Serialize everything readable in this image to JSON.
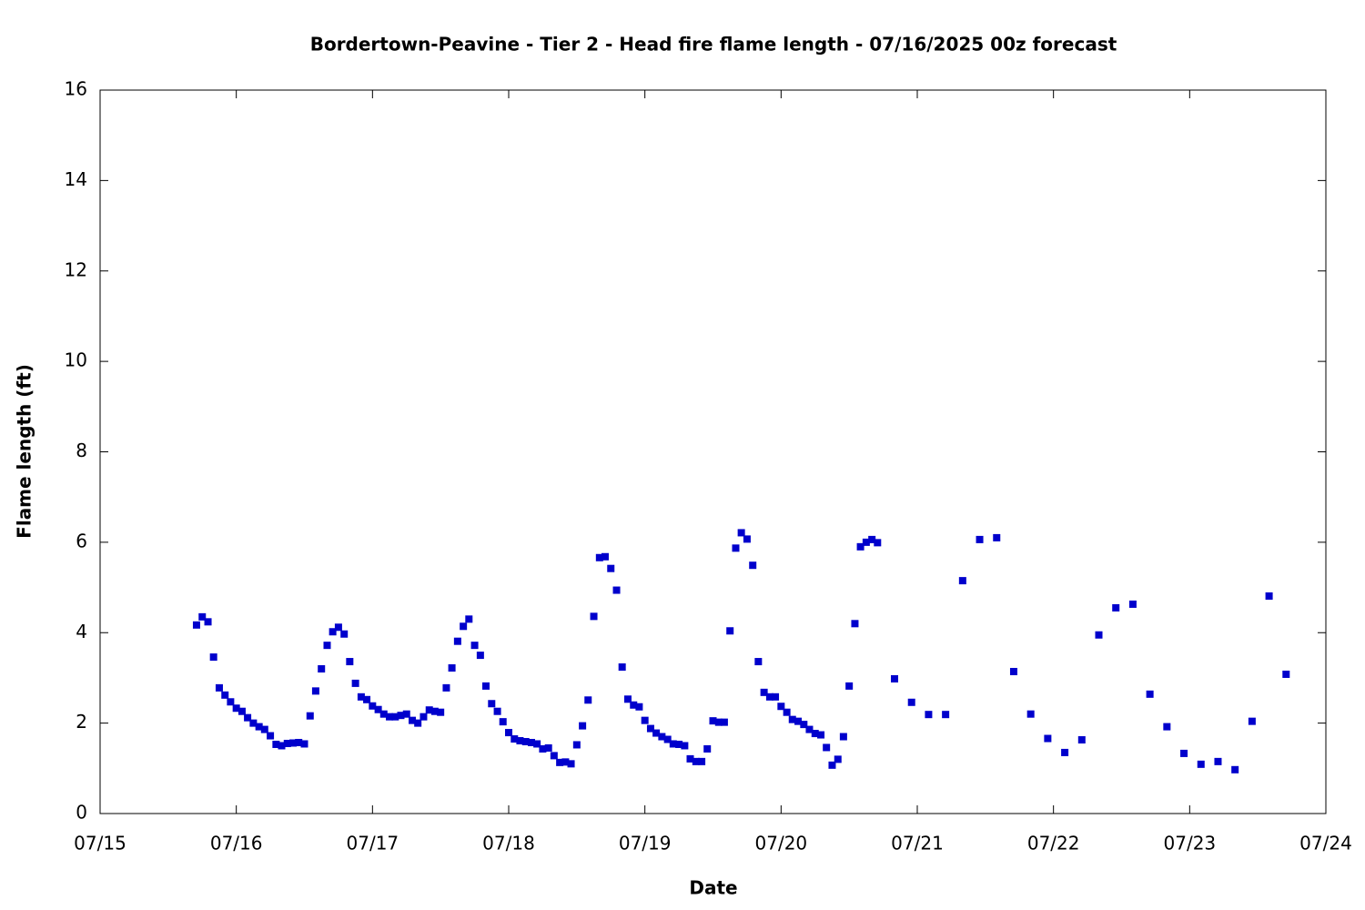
{
  "chart_data": {
    "type": "scatter",
    "title": "Bordertown-Peavine - Tier 2 - Head fire flame length - 07/16/2025 00z forecast",
    "x_label": "Date",
    "y_label": "Flame length (ft)",
    "xlim": [
      15,
      24
    ],
    "xticks": [
      {
        "value": 15,
        "label": "07/15"
      },
      {
        "value": 16,
        "label": "07/16"
      },
      {
        "value": 17,
        "label": "07/17"
      },
      {
        "value": 18,
        "label": "07/18"
      },
      {
        "value": 19,
        "label": "07/19"
      },
      {
        "value": 20,
        "label": "07/20"
      },
      {
        "value": 21,
        "label": "07/21"
      },
      {
        "value": 22,
        "label": "07/22"
      },
      {
        "value": 23,
        "label": "07/23"
      },
      {
        "value": 24,
        "label": "07/24"
      }
    ],
    "ylim": [
      0,
      16
    ],
    "yticks": [
      0,
      2,
      4,
      6,
      8,
      10,
      12,
      14,
      16
    ],
    "grid": false,
    "series": [
      {
        "color": "#0000cc",
        "x": [
          15.708,
          15.75,
          15.792,
          15.833,
          15.875,
          15.917,
          15.958,
          16,
          16.042,
          16.083,
          16.125,
          16.167,
          16.208,
          16.25,
          16.292,
          16.333,
          16.375,
          16.417,
          16.458,
          16.5,
          16.542,
          16.583,
          16.625,
          16.667,
          16.708,
          16.75,
          16.792,
          16.833,
          16.875,
          16.917,
          16.958,
          17,
          17.042,
          17.083,
          17.125,
          17.167,
          17.208,
          17.25,
          17.292,
          17.333,
          17.375,
          17.417,
          17.458,
          17.5,
          17.542,
          17.583,
          17.625,
          17.667,
          17.708,
          17.75,
          17.792,
          17.833,
          17.875,
          17.917,
          17.958,
          18,
          18.042,
          18.083,
          18.125,
          18.167,
          18.208,
          18.25,
          18.292,
          18.333,
          18.375,
          18.417,
          18.458,
          18.5,
          18.542,
          18.583,
          18.625,
          18.667,
          18.708,
          18.75,
          18.792,
          18.833,
          18.875,
          18.917,
          18.958,
          19,
          19.042,
          19.083,
          19.125,
          19.167,
          19.208,
          19.25,
          19.292,
          19.333,
          19.375,
          19.417,
          19.458,
          19.5,
          19.542,
          19.583,
          19.625,
          19.667,
          19.708,
          19.75,
          19.792,
          19.833,
          19.875,
          19.917,
          19.958,
          20,
          20.042,
          20.083,
          20.125,
          20.167,
          20.208,
          20.25,
          20.292,
          20.333,
          20.375,
          20.417,
          20.458,
          20.5,
          20.542,
          20.583,
          20.625,
          20.667,
          20.708,
          20.833,
          20.958,
          21.083,
          21.208,
          21.333,
          21.458,
          21.583,
          21.708,
          21.833,
          21.958,
          22.083,
          22.208,
          22.333,
          22.458,
          22.583,
          22.708,
          22.833,
          22.958,
          23.083,
          23.208,
          23.333,
          23.458,
          23.583,
          23.708
        ],
        "values": [
          4.17,
          4.35,
          4.24,
          3.46,
          2.78,
          2.62,
          2.47,
          2.33,
          2.26,
          2.12,
          2.0,
          1.92,
          1.86,
          1.72,
          1.53,
          1.5,
          1.55,
          1.56,
          1.57,
          1.54,
          2.16,
          2.71,
          3.2,
          3.72,
          4.02,
          4.12,
          3.97,
          3.36,
          2.88,
          2.58,
          2.52,
          2.38,
          2.3,
          2.2,
          2.14,
          2.14,
          2.17,
          2.2,
          2.06,
          2.0,
          2.14,
          2.29,
          2.26,
          2.24,
          2.78,
          3.22,
          3.81,
          4.14,
          4.3,
          3.72,
          3.5,
          2.82,
          2.43,
          2.26,
          2.03,
          1.79,
          1.65,
          1.61,
          1.59,
          1.57,
          1.54,
          1.43,
          1.45,
          1.28,
          1.13,
          1.14,
          1.1,
          1.52,
          1.94,
          2.51,
          4.36,
          5.66,
          5.68,
          5.42,
          4.94,
          3.24,
          2.53,
          2.4,
          2.36,
          2.06,
          1.88,
          1.78,
          1.7,
          1.64,
          1.54,
          1.53,
          1.5,
          1.21,
          1.15,
          1.15,
          1.43,
          2.05,
          2.02,
          2.02,
          4.04,
          5.87,
          6.21,
          6.07,
          5.49,
          3.36,
          2.68,
          2.58,
          2.58,
          2.37,
          2.24,
          2.08,
          2.04,
          1.97,
          1.86,
          1.77,
          1.74,
          1.46,
          1.07,
          1.2,
          1.7,
          2.82,
          4.2,
          5.9,
          6.0,
          6.06,
          5.99,
          2.98,
          2.46,
          2.19,
          2.19,
          5.15,
          6.06,
          6.1,
          3.14,
          2.2,
          1.66,
          1.35,
          1.63,
          3.95,
          4.55,
          4.63,
          2.64,
          1.92,
          1.33,
          1.09,
          1.15,
          0.97,
          2.04,
          4.81,
          3.08
        ]
      }
    ]
  }
}
